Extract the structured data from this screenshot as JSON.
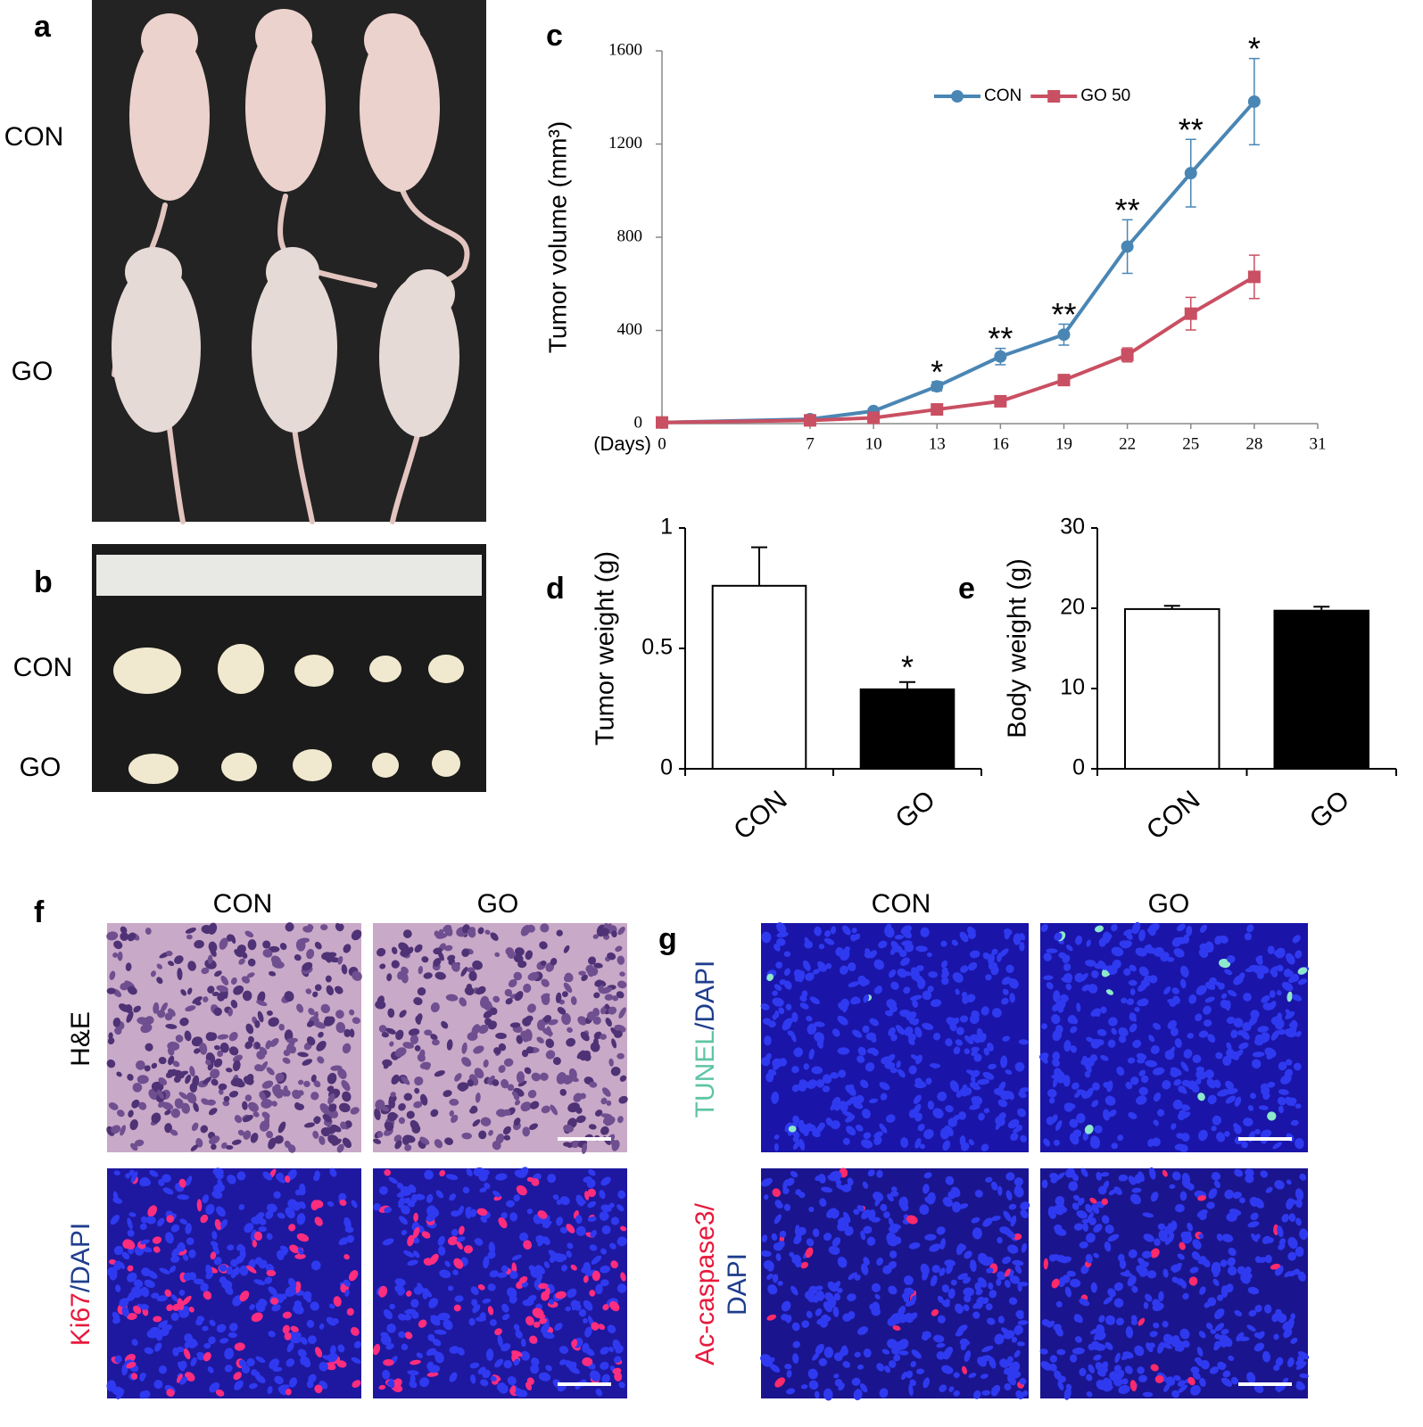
{
  "photos": {
    "a": {
      "label": "a",
      "rows": [
        "CON",
        "GO"
      ]
    },
    "b": {
      "label": "b",
      "rows": [
        "CON",
        "GO"
      ]
    }
  },
  "micrographs": {
    "f": {
      "label": "f",
      "columns": [
        "CON",
        "GO"
      ],
      "rows": [
        [
          "H&E"
        ],
        [
          "Ki67",
          "/DAPI"
        ]
      ]
    },
    "g": {
      "label": "g",
      "columns": [
        "CON",
        "GO"
      ],
      "rows": [
        [
          "TUNEL",
          "/DAPI"
        ],
        [
          "Ac-caspase3/",
          "DAPI"
        ]
      ]
    }
  },
  "chart_data": [
    {
      "type": "line",
      "label": "c",
      "ylabel": "Tumor volume (mm³)",
      "xlabel": "(Days)",
      "x": [
        0,
        7,
        10,
        13,
        16,
        19,
        22,
        25,
        28
      ],
      "xlim": [
        0,
        31
      ],
      "xticks": [
        0,
        7,
        10,
        13,
        16,
        19,
        22,
        25,
        28,
        31
      ],
      "ylim": [
        0,
        1600
      ],
      "yticks": [
        0,
        400,
        800,
        1200,
        1600
      ],
      "legend": "top-right",
      "series": [
        {
          "name": "CON",
          "color": "#4a86b4",
          "marker": "circle",
          "values": [
            5,
            19,
            54,
            160,
            288,
            382,
            760,
            1075,
            1382
          ],
          "errors": [
            3,
            6,
            10,
            20,
            35,
            45,
            115,
            145,
            185
          ]
        },
        {
          "name": "GO 50",
          "color": "#c94f62",
          "marker": "square",
          "values": [
            5,
            14,
            25,
            61,
            96,
            187,
            295,
            472,
            630
          ],
          "errors": [
            3,
            4,
            6,
            10,
            12,
            18,
            30,
            70,
            93
          ]
        }
      ],
      "significance": [
        null,
        null,
        null,
        "*",
        "**",
        "**",
        "**",
        "**",
        "*"
      ]
    },
    {
      "type": "bar",
      "label": "d",
      "ylabel": "Tumor weight (g)",
      "categories": [
        "CON",
        "GO"
      ],
      "values": [
        0.76,
        0.33
      ],
      "errors": [
        0.16,
        0.03
      ],
      "colors": [
        "#ffffff",
        "#000000"
      ],
      "ylim": [
        0,
        1
      ],
      "yticks": [
        0,
        0.5,
        1
      ],
      "significance": [
        null,
        "*"
      ]
    },
    {
      "type": "bar",
      "label": "e",
      "ylabel": "Body weight (g)",
      "categories": [
        "CON",
        "GO"
      ],
      "values": [
        19.9,
        19.7
      ],
      "errors": [
        0.4,
        0.5
      ],
      "colors": [
        "#ffffff",
        "#000000"
      ],
      "ylim": [
        0,
        30
      ],
      "yticks": [
        0,
        10,
        20,
        30
      ]
    }
  ]
}
